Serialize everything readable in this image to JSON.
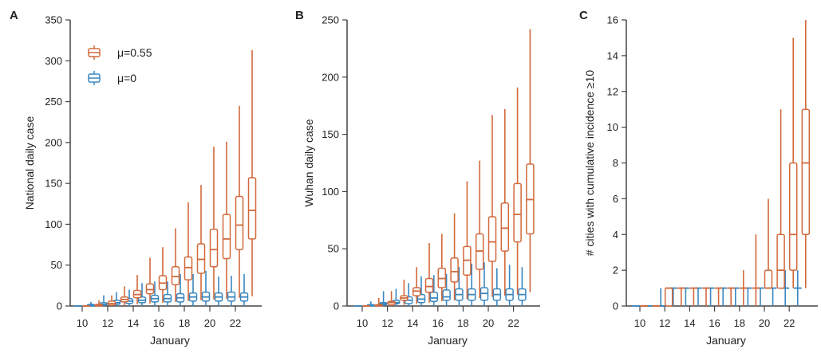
{
  "colors": {
    "orange": "#d2693c",
    "blue": "#3a87c0",
    "axis": "#444444"
  },
  "legend": [
    {
      "label": "μ=0.55",
      "color": "orange"
    },
    {
      "label": "μ=0",
      "color": "blue"
    }
  ],
  "chart_data": [
    {
      "panel": "A",
      "type": "box",
      "xlabel": "January",
      "ylabel": "National daily case",
      "ylim": [
        0,
        350
      ],
      "yticks": [
        0,
        50,
        100,
        150,
        200,
        250,
        300,
        350
      ],
      "xticks": [
        10,
        12,
        14,
        16,
        18,
        20,
        22
      ],
      "x": [
        10,
        11,
        12,
        13,
        14,
        15,
        16,
        17,
        18,
        19,
        20,
        21,
        22,
        23
      ],
      "series": [
        {
          "name": "μ=0.55",
          "color": "orange",
          "boxes": [
            [
              0,
              0,
              0,
              0,
              0
            ],
            [
              0,
              0,
              1,
              2,
              7
            ],
            [
              0,
              1,
              3,
              6,
              13
            ],
            [
              1,
              5,
              8,
              11,
              24
            ],
            [
              2,
              10,
              14,
              19,
              38
            ],
            [
              3,
              15,
              20,
              27,
              59
            ],
            [
              4,
              20,
              28,
              37,
              72
            ],
            [
              5,
              26,
              36,
              48,
              95
            ],
            [
              6,
              32,
              47,
              60,
              127
            ],
            [
              7,
              40,
              57,
              76,
              148
            ],
            [
              8,
              48,
              69,
              94,
              195
            ],
            [
              9,
              58,
              82,
              112,
              201
            ],
            [
              10,
              69,
              99,
              134,
              245
            ],
            [
              12,
              82,
              117,
              157,
              313
            ]
          ]
        },
        {
          "name": "μ=0",
          "color": "blue",
          "boxes": [
            [
              0,
              0,
              0,
              0,
              0
            ],
            [
              0,
              0,
              1,
              2,
              5
            ],
            [
              0,
              1,
              2,
              4,
              13
            ],
            [
              0,
              2,
              4,
              7,
              17
            ],
            [
              0,
              3,
              6,
              9,
              20
            ],
            [
              0,
              4,
              7,
              11,
              28
            ],
            [
              0,
              5,
              9,
              13,
              30
            ],
            [
              0,
              5,
              9,
              14,
              30
            ],
            [
              0,
              5,
              10,
              15,
              39
            ],
            [
              0,
              6,
              11,
              16,
              39
            ],
            [
              0,
              6,
              11,
              17,
              43
            ],
            [
              0,
              6,
              11,
              16,
              36
            ],
            [
              0,
              6,
              11,
              17,
              37
            ],
            [
              0,
              6,
              11,
              16,
              39
            ]
          ]
        }
      ]
    },
    {
      "panel": "B",
      "type": "box",
      "xlabel": "January",
      "ylabel": "Wuhan daily case",
      "ylim": [
        0,
        250
      ],
      "yticks": [
        0,
        50,
        100,
        150,
        200,
        250
      ],
      "xticks": [
        10,
        12,
        14,
        16,
        18,
        20,
        22
      ],
      "x": [
        10,
        11,
        12,
        13,
        14,
        15,
        16,
        17,
        18,
        19,
        20,
        21,
        22,
        23
      ],
      "series": [
        {
          "name": "μ=0.55",
          "color": "orange",
          "boxes": [
            [
              0,
              0,
              0,
              0,
              0
            ],
            [
              0,
              0,
              1,
              1,
              7
            ],
            [
              0,
              1,
              3,
              4,
              13
            ],
            [
              1,
              5,
              7,
              9,
              23
            ],
            [
              2,
              9,
              13,
              16,
              34
            ],
            [
              3,
              12,
              17,
              24,
              55
            ],
            [
              4,
              16,
              24,
              33,
              63
            ],
            [
              5,
              21,
              30,
              42,
              81
            ],
            [
              6,
              27,
              40,
              52,
              109
            ],
            [
              7,
              32,
              48,
              63,
              127
            ],
            [
              8,
              39,
              56,
              78,
              167
            ],
            [
              9,
              48,
              68,
              90,
              172
            ],
            [
              10,
              56,
              80,
              107,
              191
            ],
            [
              12,
              63,
              93,
              124,
              242
            ]
          ]
        },
        {
          "name": "μ=0",
          "color": "blue",
          "boxes": [
            [
              0,
              0,
              0,
              0,
              0
            ],
            [
              0,
              0,
              1,
              1,
              4
            ],
            [
              0,
              1,
              2,
              3,
              13
            ],
            [
              0,
              2,
              3,
              5,
              15
            ],
            [
              0,
              2,
              5,
              8,
              20
            ],
            [
              0,
              3,
              6,
              10,
              26
            ],
            [
              0,
              4,
              7,
              12,
              27
            ],
            [
              0,
              5,
              8,
              14,
              28
            ],
            [
              0,
              5,
              10,
              15,
              34
            ],
            [
              0,
              5,
              10,
              15,
              37
            ],
            [
              0,
              5,
              11,
              16,
              38
            ],
            [
              0,
              5,
              10,
              15,
              33
            ],
            [
              0,
              5,
              10,
              15,
              36
            ],
            [
              0,
              5,
              10,
              15,
              34
            ]
          ]
        }
      ]
    },
    {
      "panel": "C",
      "type": "box",
      "xlabel": "January",
      "ylabel": "# cities with cumulative incidence ≥10",
      "ylim": [
        0,
        16
      ],
      "yticks": [
        0,
        2,
        4,
        6,
        8,
        10,
        12,
        14,
        16
      ],
      "xticks": [
        10,
        12,
        14,
        16,
        18,
        20,
        22
      ],
      "x": [
        10,
        11,
        12,
        13,
        14,
        15,
        16,
        17,
        18,
        19,
        20,
        21,
        22,
        23
      ],
      "series": [
        {
          "name": "μ=0.55",
          "color": "orange",
          "boxes": [
            [
              0,
              0,
              0,
              0,
              0
            ],
            [
              0,
              0,
              0,
              0,
              0
            ],
            [
              0,
              0,
              1,
              1,
              1
            ],
            [
              0,
              1,
              1,
              1,
              1
            ],
            [
              0,
              1,
              1,
              1,
              1
            ],
            [
              0,
              1,
              1,
              1,
              1
            ],
            [
              0,
              1,
              1,
              1,
              1
            ],
            [
              0,
              1,
              1,
              1,
              1
            ],
            [
              0,
              1,
              1,
              1,
              2
            ],
            [
              0,
              1,
              1,
              1,
              4
            ],
            [
              1,
              1,
              1,
              2,
              6
            ],
            [
              1,
              1,
              2,
              4,
              11
            ],
            [
              1,
              2,
              4,
              8,
              15
            ],
            [
              1,
              4,
              8,
              11,
              16
            ]
          ]
        },
        {
          "name": "μ=0",
          "color": "blue",
          "boxes": [
            [
              0,
              0,
              0,
              0,
              0
            ],
            [
              0,
              0,
              0,
              0,
              0
            ],
            [
              0,
              0,
              0,
              0,
              1
            ],
            [
              0,
              1,
              1,
              1,
              1
            ],
            [
              0,
              1,
              1,
              1,
              1
            ],
            [
              0,
              1,
              1,
              1,
              1
            ],
            [
              0,
              1,
              1,
              1,
              1
            ],
            [
              0,
              1,
              1,
              1,
              1
            ],
            [
              0,
              1,
              1,
              1,
              1
            ],
            [
              0,
              1,
              1,
              1,
              1
            ],
            [
              0,
              1,
              1,
              1,
              1
            ],
            [
              0,
              1,
              1,
              1,
              1
            ],
            [
              0,
              1,
              1,
              1,
              2
            ],
            [
              0,
              1,
              1,
              1,
              2
            ]
          ]
        }
      ]
    }
  ]
}
